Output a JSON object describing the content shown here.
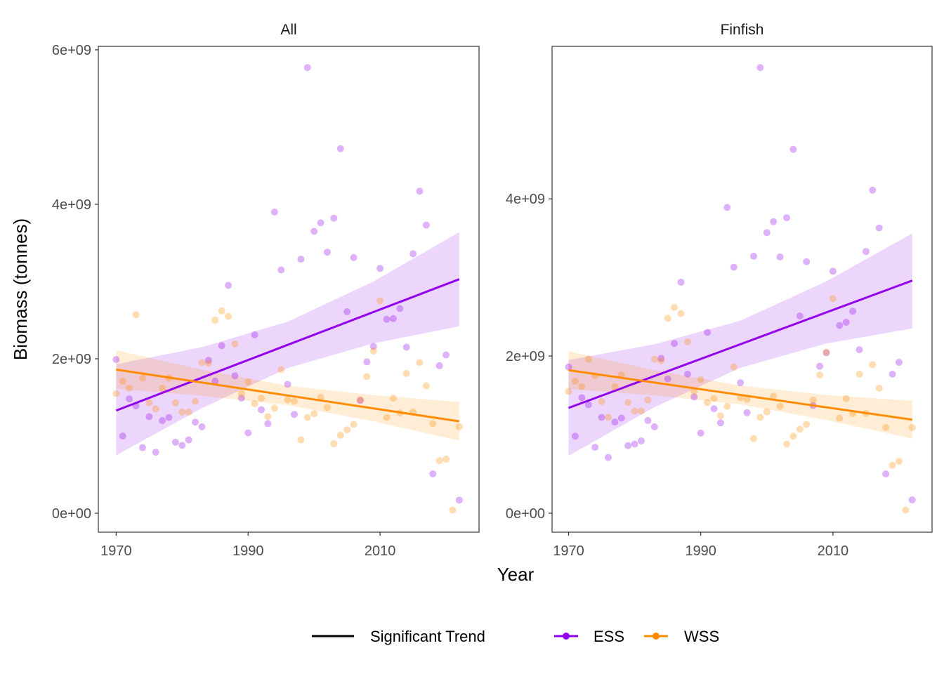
{
  "chart_data": {
    "type": "scatter",
    "xlabel": "Year",
    "ylabel": "Biomass (tonnes)",
    "legend": {
      "position": "bottom",
      "entries": [
        {
          "label": "Significant Trend",
          "color": "#000000",
          "kind": "line"
        },
        {
          "label": "ESS",
          "color": "#9100ED",
          "kind": "line-point"
        },
        {
          "label": "WSS",
          "color": "#FF8C00",
          "kind": "line-point"
        }
      ]
    },
    "colors": {
      "ESS": "#9100ED",
      "WSS": "#FF8C00"
    },
    "grid": false,
    "panels": [
      {
        "title": "All",
        "xlim": [
          1967.3,
          2025.0
        ],
        "ylim": [
          -245000000.0,
          6045000000.0
        ],
        "xticks": [
          1970,
          1990,
          2010
        ],
        "xtick_labels": [
          "1970",
          "1990",
          "2010"
        ],
        "yticks": [
          0,
          2000000000.0,
          4000000000.0,
          6000000000.0
        ],
        "ytick_labels": [
          "0e+00",
          "2e+09",
          "4e+09",
          "6e+09"
        ],
        "series": [
          {
            "name": "ESS",
            "years": [
              1970,
              1971,
              1972,
              1973,
              1974,
              1975,
              1976,
              1977,
              1978,
              1979,
              1980,
              1981,
              1982,
              1983,
              1984,
              1985,
              1986,
              1987,
              1988,
              1989,
              1990,
              1991,
              1992,
              1993,
              1994,
              1995,
              1996,
              1997,
              1998,
              1999,
              2000,
              2001,
              2002,
              2003,
              2004,
              2005,
              2006,
              2007,
              2008,
              2009,
              2010,
              2011,
              2012,
              2013,
              2014,
              2015,
              2016,
              2017,
              2018,
              2019,
              2020,
              2022
            ],
            "values": [
              1990000000.0,
              1000000000.0,
              1480000000.0,
              1390000000.0,
              850000000.0,
              1250000000.0,
              790000000.0,
              1200000000.0,
              1240000000.0,
              920000000.0,
              880000000.0,
              950000000.0,
              1180000000.0,
              1120000000.0,
              1980000000.0,
              1710000000.0,
              2170000000.0,
              2950000000.0,
              1780000000.0,
              1490000000.0,
              1040000000.0,
              2310000000.0,
              1340000000.0,
              1160000000.0,
              3900000000.0,
              3150000000.0,
              1670000000.0,
              1280000000.0,
              3290000000.0,
              5770000000.0,
              3650000000.0,
              3760000000.0,
              3380000000.0,
              3820000000.0,
              4720000000.0,
              2610000000.0,
              3310000000.0,
              1460000000.0,
              1960000000.0,
              2160000000.0,
              3170000000.0,
              2510000000.0,
              2520000000.0,
              2650000000.0,
              2150000000.0,
              3360000000.0,
              4170000000.0,
              3730000000.0,
              510000000.0,
              1910000000.0,
              2050000000.0,
              170000000.0
            ],
            "trend": {
              "years": [
                1970,
                1983,
                1996,
                2009,
                2022
              ],
              "fit": [
                1330000000.0,
                1755000000.0,
                2180000000.0,
                2605000000.0,
                3030000000.0
              ],
              "lower": [
                750000000.0,
                1360000000.0,
                1880000000.0,
                2200000000.0,
                2420000000.0
              ],
              "upper": [
                1930000000.0,
                2150000000.0,
                2480000000.0,
                3000000000.0,
                3640000000.0
              ],
              "significant": true
            }
          },
          {
            "name": "WSS",
            "years": [
              1970,
              1971,
              1972,
              1973,
              1974,
              1975,
              1976,
              1977,
              1978,
              1979,
              1980,
              1981,
              1982,
              1983,
              1984,
              1985,
              1986,
              1987,
              1988,
              1989,
              1990,
              1991,
              1992,
              1993,
              1994,
              1995,
              1996,
              1997,
              1998,
              1999,
              2000,
              2001,
              2002,
              2003,
              2004,
              2005,
              2006,
              2007,
              2008,
              2009,
              2010,
              2011,
              2012,
              2013,
              2014,
              2015,
              2016,
              2017,
              2018,
              2019,
              2020,
              2021,
              2022
            ],
            "values": [
              1550000000.0,
              1710000000.0,
              1620000000.0,
              2570000000.0,
              1750000000.0,
              1430000000.0,
              1350000000.0,
              1620000000.0,
              1750000000.0,
              1430000000.0,
              1310000000.0,
              1310000000.0,
              1450000000.0,
              1950000000.0,
              1940000000.0,
              2500000000.0,
              2620000000.0,
              2550000000.0,
              2190000000.0,
              1550000000.0,
              1700000000.0,
              1420000000.0,
              1490000000.0,
              1250000000.0,
              1360000000.0,
              1860000000.0,
              1470000000.0,
              1450000000.0,
              950000000.0,
              1240000000.0,
              1290000000.0,
              1500000000.0,
              1370000000.0,
              900000000.0,
              1010000000.0,
              1080000000.0,
              1150000000.0,
              1470000000.0,
              1770000000.0,
              2100000000.0,
              2750000000.0,
              1240000000.0,
              1490000000.0,
              1300000000.0,
              1810000000.0,
              1310000000.0,
              1950000000.0,
              1650000000.0,
              1160000000.0,
              680000000.0,
              700000000.0,
              40000000.0,
              1120000000.0
            ],
            "trend": {
              "years": [
                1970,
                1983,
                1996,
                2009,
                2022
              ],
              "fit": [
                1860000000.0,
                1690000000.0,
                1525000000.0,
                1360000000.0,
                1190000000.0
              ],
              "lower": [
                1610000000.0,
                1520000000.0,
                1400000000.0,
                1190000000.0,
                940000000.0
              ],
              "upper": [
                2110000000.0,
                1860000000.0,
                1650000000.0,
                1530000000.0,
                1440000000.0
              ],
              "significant": true
            }
          }
        ]
      },
      {
        "title": "Finfish",
        "xlim": [
          1967.5,
          2025.0
        ],
        "ylim": [
          -241000000.0,
          5940000000.0
        ],
        "xticks": [
          1970,
          1990,
          2010
        ],
        "xtick_labels": [
          "1970",
          "1990",
          "2010"
        ],
        "yticks": [
          0,
          2000000000.0,
          4000000000.0
        ],
        "ytick_labels": [
          "0e+00",
          "2e+09",
          "4e+09"
        ],
        "series": [
          {
            "name": "ESS",
            "years": [
              1970,
              1971,
              1972,
              1973,
              1974,
              1975,
              1976,
              1977,
              1978,
              1979,
              1980,
              1981,
              1982,
              1983,
              1984,
              1985,
              1986,
              1987,
              1988,
              1989,
              1990,
              1991,
              1992,
              1993,
              1994,
              1995,
              1996,
              1997,
              1998,
              1999,
              2000,
              2001,
              2002,
              2003,
              2004,
              2005,
              2006,
              2007,
              2008,
              2009,
              2010,
              2011,
              2012,
              2013,
              2014,
              2015,
              2016,
              2017,
              2018,
              2019,
              2020,
              2022
            ],
            "values": [
              1860000000.0,
              980000000.0,
              1470000000.0,
              1380000000.0,
              840000000.0,
              1220000000.0,
              710000000.0,
              1160000000.0,
              1210000000.0,
              860000000.0,
              880000000.0,
              920000000.0,
              1180000000.0,
              1100000000.0,
              1970000000.0,
              1710000000.0,
              2160000000.0,
              2940000000.0,
              1770000000.0,
              1480000000.0,
              1020000000.0,
              2300000000.0,
              1330000000.0,
              1150000000.0,
              3890000000.0,
              3130000000.0,
              1660000000.0,
              1280000000.0,
              3270000000.0,
              5670000000.0,
              3570000000.0,
              3710000000.0,
              3260000000.0,
              3760000000.0,
              4630000000.0,
              2510000000.0,
              3200000000.0,
              1370000000.0,
              1870000000.0,
              2040000000.0,
              3080000000.0,
              2390000000.0,
              2430000000.0,
              2570000000.0,
              2080000000.0,
              3330000000.0,
              4110000000.0,
              3630000000.0,
              500000000.0,
              1770000000.0,
              1920000000.0,
              170000000.0
            ],
            "trend": {
              "years": [
                1970,
                1983,
                1996,
                2009,
                2022
              ],
              "fit": [
                1340000000.0,
                1745000000.0,
                2150000000.0,
                2555000000.0,
                2960000000.0
              ],
              "lower": [
                730000000.0,
                1350000000.0,
                1850000000.0,
                2160000000.0,
                2350000000.0
              ],
              "upper": [
                1950000000.0,
                2150000000.0,
                2450000000.0,
                2950000000.0,
                3560000000.0
              ],
              "significant": true
            }
          },
          {
            "name": "WSS",
            "years": [
              1970,
              1971,
              1972,
              1973,
              1974,
              1975,
              1976,
              1977,
              1978,
              1979,
              1980,
              1981,
              1982,
              1983,
              1984,
              1985,
              1986,
              1987,
              1988,
              1989,
              1990,
              1991,
              1992,
              1993,
              1994,
              1995,
              1996,
              1997,
              1998,
              1999,
              2000,
              2001,
              2002,
              2003,
              2004,
              2005,
              2006,
              2007,
              2008,
              2009,
              2010,
              2011,
              2012,
              2013,
              2014,
              2015,
              2016,
              2017,
              2018,
              2019,
              2020,
              2021,
              2022
            ],
            "values": [
              1550000000.0,
              1680000000.0,
              1610000000.0,
              1960000000.0,
              1750000000.0,
              1420000000.0,
              1220000000.0,
              1610000000.0,
              1760000000.0,
              1410000000.0,
              1300000000.0,
              1300000000.0,
              1440000000.0,
              1960000000.0,
              1940000000.0,
              2480000000.0,
              2620000000.0,
              2540000000.0,
              2180000000.0,
              1550000000.0,
              1700000000.0,
              1410000000.0,
              1460000000.0,
              1240000000.0,
              1360000000.0,
              1860000000.0,
              1470000000.0,
              1450000000.0,
              950000000.0,
              1220000000.0,
              1290000000.0,
              1490000000.0,
              1360000000.0,
              880000000.0,
              980000000.0,
              1070000000.0,
              1130000000.0,
              1440000000.0,
              1760000000.0,
              2050000000.0,
              2730000000.0,
              1210000000.0,
              1460000000.0,
              1270000000.0,
              1770000000.0,
              1270000000.0,
              1890000000.0,
              1590000000.0,
              1090000000.0,
              610000000.0,
              660000000.0,
              40000000.0,
              1090000000.0
            ],
            "trend": {
              "years": [
                1970,
                1983,
                1996,
                2009,
                2022
              ],
              "fit": [
                1820000000.0,
                1660000000.0,
                1505000000.0,
                1345000000.0,
                1190000000.0
              ],
              "lower": [
                1580000000.0,
                1500000000.0,
                1385000000.0,
                1185000000.0,
                950000000.0
              ],
              "upper": [
                2060000000.0,
                1820000000.0,
                1625000000.0,
                1505000000.0,
                1430000000.0
              ],
              "significant": true
            }
          }
        ]
      }
    ]
  }
}
